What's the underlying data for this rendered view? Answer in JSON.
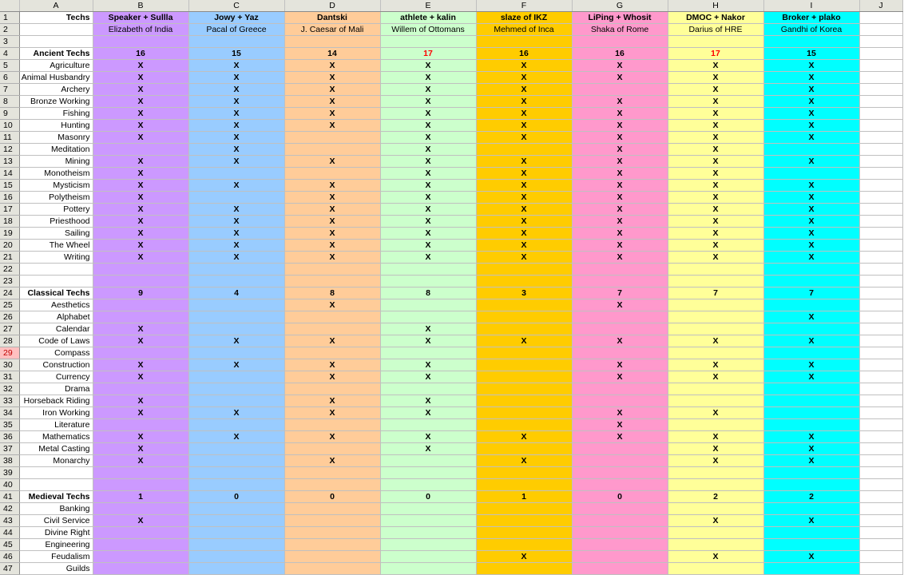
{
  "column_headers": [
    "A",
    "B",
    "C",
    "D",
    "E",
    "F",
    "G",
    "H",
    "I",
    "J"
  ],
  "column_colors": [
    "#ffffff",
    "#cc99ff",
    "#99ccff",
    "#ffcc99",
    "#ccffcc",
    "#ffcc00",
    "#ff99cc",
    "#ffff99",
    "#00ffff",
    "#ffffff"
  ],
  "column_widths": [
    24,
    92,
    120,
    120,
    120,
    120,
    120,
    120,
    120,
    120,
    54
  ],
  "mark": "X",
  "rows": [
    {
      "n": "1",
      "a": "Techs",
      "a_bold": true,
      "cells": [
        "Speaker + Sullla",
        "Jowy + Yaz",
        "Dantski",
        "athlete + kalin",
        "slaze of IKZ",
        "LiPing + Whosit",
        "DMOC + Nakor",
        "Broker + plako"
      ],
      "bold": true
    },
    {
      "n": "2",
      "a": "",
      "cells": [
        "Elizabeth of India",
        "Pacal of Greece",
        "J. Caesar of Mali",
        "Willem of Ottomans",
        "Mehmed of Inca",
        "Shaka of Rome",
        "Darius of HRE",
        "Gandhi of Korea"
      ]
    },
    {
      "n": "3",
      "a": "",
      "cells": [
        "",
        "",
        "",
        "",
        "",
        "",
        "",
        ""
      ]
    },
    {
      "n": "4",
      "a": "Ancient Techs",
      "a_bold": true,
      "cells": [
        "16",
        "15",
        "14",
        "17",
        "16",
        "16",
        "17",
        "15"
      ],
      "bold": true,
      "red": [
        3,
        6
      ]
    },
    {
      "n": "5",
      "a": "Agriculture",
      "cells": [
        "X",
        "X",
        "X",
        "X",
        "X",
        "X",
        "X",
        "X"
      ],
      "mark": true
    },
    {
      "n": "6",
      "a": "Animal Husbandry",
      "cells": [
        "X",
        "X",
        "X",
        "X",
        "X",
        "X",
        "X",
        "X"
      ],
      "mark": true
    },
    {
      "n": "7",
      "a": "Archery",
      "cells": [
        "X",
        "X",
        "X",
        "X",
        "X",
        "",
        "X",
        "X"
      ],
      "mark": true
    },
    {
      "n": "8",
      "a": "Bronze Working",
      "cells": [
        "X",
        "X",
        "X",
        "X",
        "X",
        "X",
        "X",
        "X"
      ],
      "mark": true
    },
    {
      "n": "9",
      "a": "Fishing",
      "cells": [
        "X",
        "X",
        "X",
        "X",
        "X",
        "X",
        "X",
        "X"
      ],
      "mark": true
    },
    {
      "n": "10",
      "a": "Hunting",
      "cells": [
        "X",
        "X",
        "X",
        "X",
        "X",
        "X",
        "X",
        "X"
      ],
      "mark": true
    },
    {
      "n": "11",
      "a": "Masonry",
      "cells": [
        "X",
        "X",
        "",
        "X",
        "X",
        "X",
        "X",
        "X"
      ],
      "mark": true
    },
    {
      "n": "12",
      "a": "Meditation",
      "cells": [
        "",
        "X",
        "",
        "X",
        "",
        "X",
        "X",
        ""
      ],
      "mark": true
    },
    {
      "n": "13",
      "a": "Mining",
      "cells": [
        "X",
        "X",
        "X",
        "X",
        "X",
        "X",
        "X",
        "X"
      ],
      "mark": true
    },
    {
      "n": "14",
      "a": "Monotheism",
      "cells": [
        "X",
        "",
        "",
        "X",
        "X",
        "X",
        "X",
        ""
      ],
      "mark": true
    },
    {
      "n": "15",
      "a": "Mysticism",
      "cells": [
        "X",
        "X",
        "X",
        "X",
        "X",
        "X",
        "X",
        "X"
      ],
      "mark": true
    },
    {
      "n": "16",
      "a": "Polytheism",
      "cells": [
        "X",
        "",
        "X",
        "X",
        "X",
        "X",
        "X",
        "X"
      ],
      "mark": true
    },
    {
      "n": "17",
      "a": "Pottery",
      "cells": [
        "X",
        "X",
        "X",
        "X",
        "X",
        "X",
        "X",
        "X"
      ],
      "mark": true
    },
    {
      "n": "18",
      "a": "Priesthood",
      "cells": [
        "X",
        "X",
        "X",
        "X",
        "X",
        "X",
        "X",
        "X"
      ],
      "mark": true
    },
    {
      "n": "19",
      "a": "Sailing",
      "cells": [
        "X",
        "X",
        "X",
        "X",
        "X",
        "X",
        "X",
        "X"
      ],
      "mark": true
    },
    {
      "n": "20",
      "a": "The Wheel",
      "cells": [
        "X",
        "X",
        "X",
        "X",
        "X",
        "X",
        "X",
        "X"
      ],
      "mark": true
    },
    {
      "n": "21",
      "a": "Writing",
      "cells": [
        "X",
        "X",
        "X",
        "X",
        "X",
        "X",
        "X",
        "X"
      ],
      "mark": true
    },
    {
      "n": "22",
      "a": "",
      "cells": [
        "",
        "",
        "",
        "",
        "",
        "",
        "",
        ""
      ]
    },
    {
      "n": "23",
      "a": "",
      "cells": [
        "",
        "",
        "",
        "",
        "",
        "",
        "",
        ""
      ]
    },
    {
      "n": "24",
      "a": "Classical Techs",
      "a_bold": true,
      "cells": [
        "9",
        "4",
        "8",
        "8",
        "3",
        "7",
        "7",
        "7"
      ],
      "bold": true
    },
    {
      "n": "25",
      "a": "Aesthetics",
      "cells": [
        "",
        "",
        "X",
        "",
        "",
        "X",
        "",
        ""
      ],
      "mark": true
    },
    {
      "n": "26",
      "a": "Alphabet",
      "cells": [
        "",
        "",
        "",
        "",
        "",
        "",
        "",
        "X"
      ],
      "mark": true
    },
    {
      "n": "27",
      "a": "Calendar",
      "cells": [
        "X",
        "",
        "",
        "X",
        "",
        "",
        "",
        ""
      ],
      "mark": true
    },
    {
      "n": "28",
      "a": "Code of Laws",
      "cells": [
        "X",
        "X",
        "X",
        "X",
        "X",
        "X",
        "X",
        "X"
      ],
      "mark": true
    },
    {
      "n": "29",
      "a": "Compass",
      "cells": [
        "",
        "",
        "",
        "",
        "",
        "",
        "",
        ""
      ],
      "selected": true
    },
    {
      "n": "30",
      "a": "Construction",
      "cells": [
        "X",
        "X",
        "X",
        "X",
        "",
        "X",
        "X",
        "X"
      ],
      "mark": true
    },
    {
      "n": "31",
      "a": "Currency",
      "cells": [
        "X",
        "",
        "X",
        "X",
        "",
        "X",
        "X",
        "X"
      ],
      "mark": true
    },
    {
      "n": "32",
      "a": "Drama",
      "cells": [
        "",
        "",
        "",
        "",
        "",
        "",
        "",
        ""
      ]
    },
    {
      "n": "33",
      "a": "Horseback Riding",
      "cells": [
        "X",
        "",
        "X",
        "X",
        "",
        "",
        "",
        ""
      ],
      "mark": true
    },
    {
      "n": "34",
      "a": "Iron Working",
      "cells": [
        "X",
        "X",
        "X",
        "X",
        "",
        "X",
        "X",
        ""
      ],
      "mark": true
    },
    {
      "n": "35",
      "a": "Literature",
      "cells": [
        "",
        "",
        "",
        "",
        "",
        "X",
        "",
        ""
      ],
      "mark": true
    },
    {
      "n": "36",
      "a": "Mathematics",
      "cells": [
        "X",
        "X",
        "X",
        "X",
        "X",
        "X",
        "X",
        "X"
      ],
      "mark": true
    },
    {
      "n": "37",
      "a": "Metal Casting",
      "cells": [
        "X",
        "",
        "",
        "X",
        "",
        "",
        "X",
        "X"
      ],
      "mark": true
    },
    {
      "n": "38",
      "a": "Monarchy",
      "cells": [
        "X",
        "",
        "X",
        "",
        "X",
        "",
        "X",
        "X"
      ],
      "mark": true
    },
    {
      "n": "39",
      "a": "",
      "cells": [
        "",
        "",
        "",
        "",
        "",
        "",
        "",
        ""
      ]
    },
    {
      "n": "40",
      "a": "",
      "cells": [
        "",
        "",
        "",
        "",
        "",
        "",
        "",
        ""
      ]
    },
    {
      "n": "41",
      "a": "Medieval Techs",
      "a_bold": true,
      "cells": [
        "1",
        "0",
        "0",
        "0",
        "1",
        "0",
        "2",
        "2"
      ],
      "bold": true
    },
    {
      "n": "42",
      "a": "Banking",
      "cells": [
        "",
        "",
        "",
        "",
        "",
        "",
        "",
        ""
      ]
    },
    {
      "n": "43",
      "a": "Civil Service",
      "cells": [
        "X",
        "",
        "",
        "",
        "",
        "",
        "X",
        "X"
      ],
      "mark": true
    },
    {
      "n": "44",
      "a": "Divine Right",
      "cells": [
        "",
        "",
        "",
        "",
        "",
        "",
        "",
        ""
      ]
    },
    {
      "n": "45",
      "a": "Engineering",
      "cells": [
        "",
        "",
        "",
        "",
        "",
        "",
        "",
        ""
      ]
    },
    {
      "n": "46",
      "a": "Feudalism",
      "cells": [
        "",
        "",
        "",
        "",
        "X",
        "",
        "X",
        "X"
      ],
      "mark": true
    },
    {
      "n": "47",
      "a": "Guilds",
      "cells": [
        "",
        "",
        "",
        "",
        "",
        "",
        "",
        ""
      ]
    }
  ]
}
